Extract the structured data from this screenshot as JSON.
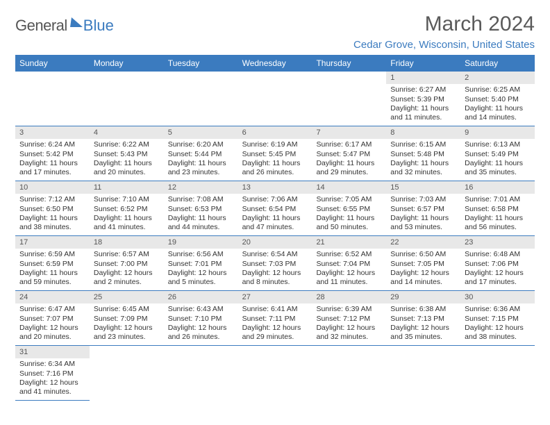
{
  "logo": {
    "text1": "General",
    "text2": "Blue"
  },
  "title": "March 2024",
  "location": "Cedar Grove, Wisconsin, United States",
  "colors": {
    "header_bg": "#3b7bbf",
    "header_text": "#ffffff",
    "daynum_bg": "#e8e8e8",
    "text": "#333333"
  },
  "daysOfWeek": [
    "Sunday",
    "Monday",
    "Tuesday",
    "Wednesday",
    "Thursday",
    "Friday",
    "Saturday"
  ],
  "weeks": [
    [
      null,
      null,
      null,
      null,
      null,
      {
        "n": "1",
        "sunrise": "6:27 AM",
        "sunset": "5:39 PM",
        "daylight": "11 hours and 11 minutes."
      },
      {
        "n": "2",
        "sunrise": "6:25 AM",
        "sunset": "5:40 PM",
        "daylight": "11 hours and 14 minutes."
      }
    ],
    [
      {
        "n": "3",
        "sunrise": "6:24 AM",
        "sunset": "5:42 PM",
        "daylight": "11 hours and 17 minutes."
      },
      {
        "n": "4",
        "sunrise": "6:22 AM",
        "sunset": "5:43 PM",
        "daylight": "11 hours and 20 minutes."
      },
      {
        "n": "5",
        "sunrise": "6:20 AM",
        "sunset": "5:44 PM",
        "daylight": "11 hours and 23 minutes."
      },
      {
        "n": "6",
        "sunrise": "6:19 AM",
        "sunset": "5:45 PM",
        "daylight": "11 hours and 26 minutes."
      },
      {
        "n": "7",
        "sunrise": "6:17 AM",
        "sunset": "5:47 PM",
        "daylight": "11 hours and 29 minutes."
      },
      {
        "n": "8",
        "sunrise": "6:15 AM",
        "sunset": "5:48 PM",
        "daylight": "11 hours and 32 minutes."
      },
      {
        "n": "9",
        "sunrise": "6:13 AM",
        "sunset": "5:49 PM",
        "daylight": "11 hours and 35 minutes."
      }
    ],
    [
      {
        "n": "10",
        "sunrise": "7:12 AM",
        "sunset": "6:50 PM",
        "daylight": "11 hours and 38 minutes."
      },
      {
        "n": "11",
        "sunrise": "7:10 AM",
        "sunset": "6:52 PM",
        "daylight": "11 hours and 41 minutes."
      },
      {
        "n": "12",
        "sunrise": "7:08 AM",
        "sunset": "6:53 PM",
        "daylight": "11 hours and 44 minutes."
      },
      {
        "n": "13",
        "sunrise": "7:06 AM",
        "sunset": "6:54 PM",
        "daylight": "11 hours and 47 minutes."
      },
      {
        "n": "14",
        "sunrise": "7:05 AM",
        "sunset": "6:55 PM",
        "daylight": "11 hours and 50 minutes."
      },
      {
        "n": "15",
        "sunrise": "7:03 AM",
        "sunset": "6:57 PM",
        "daylight": "11 hours and 53 minutes."
      },
      {
        "n": "16",
        "sunrise": "7:01 AM",
        "sunset": "6:58 PM",
        "daylight": "11 hours and 56 minutes."
      }
    ],
    [
      {
        "n": "17",
        "sunrise": "6:59 AM",
        "sunset": "6:59 PM",
        "daylight": "11 hours and 59 minutes."
      },
      {
        "n": "18",
        "sunrise": "6:57 AM",
        "sunset": "7:00 PM",
        "daylight": "12 hours and 2 minutes."
      },
      {
        "n": "19",
        "sunrise": "6:56 AM",
        "sunset": "7:01 PM",
        "daylight": "12 hours and 5 minutes."
      },
      {
        "n": "20",
        "sunrise": "6:54 AM",
        "sunset": "7:03 PM",
        "daylight": "12 hours and 8 minutes."
      },
      {
        "n": "21",
        "sunrise": "6:52 AM",
        "sunset": "7:04 PM",
        "daylight": "12 hours and 11 minutes."
      },
      {
        "n": "22",
        "sunrise": "6:50 AM",
        "sunset": "7:05 PM",
        "daylight": "12 hours and 14 minutes."
      },
      {
        "n": "23",
        "sunrise": "6:48 AM",
        "sunset": "7:06 PM",
        "daylight": "12 hours and 17 minutes."
      }
    ],
    [
      {
        "n": "24",
        "sunrise": "6:47 AM",
        "sunset": "7:07 PM",
        "daylight": "12 hours and 20 minutes."
      },
      {
        "n": "25",
        "sunrise": "6:45 AM",
        "sunset": "7:09 PM",
        "daylight": "12 hours and 23 minutes."
      },
      {
        "n": "26",
        "sunrise": "6:43 AM",
        "sunset": "7:10 PM",
        "daylight": "12 hours and 26 minutes."
      },
      {
        "n": "27",
        "sunrise": "6:41 AM",
        "sunset": "7:11 PM",
        "daylight": "12 hours and 29 minutes."
      },
      {
        "n": "28",
        "sunrise": "6:39 AM",
        "sunset": "7:12 PM",
        "daylight": "12 hours and 32 minutes."
      },
      {
        "n": "29",
        "sunrise": "6:38 AM",
        "sunset": "7:13 PM",
        "daylight": "12 hours and 35 minutes."
      },
      {
        "n": "30",
        "sunrise": "6:36 AM",
        "sunset": "7:15 PM",
        "daylight": "12 hours and 38 minutes."
      }
    ],
    [
      {
        "n": "31",
        "sunrise": "6:34 AM",
        "sunset": "7:16 PM",
        "daylight": "12 hours and 41 minutes."
      },
      null,
      null,
      null,
      null,
      null,
      null
    ]
  ],
  "labels": {
    "sunrise": "Sunrise: ",
    "sunset": "Sunset: ",
    "daylight": "Daylight: "
  }
}
